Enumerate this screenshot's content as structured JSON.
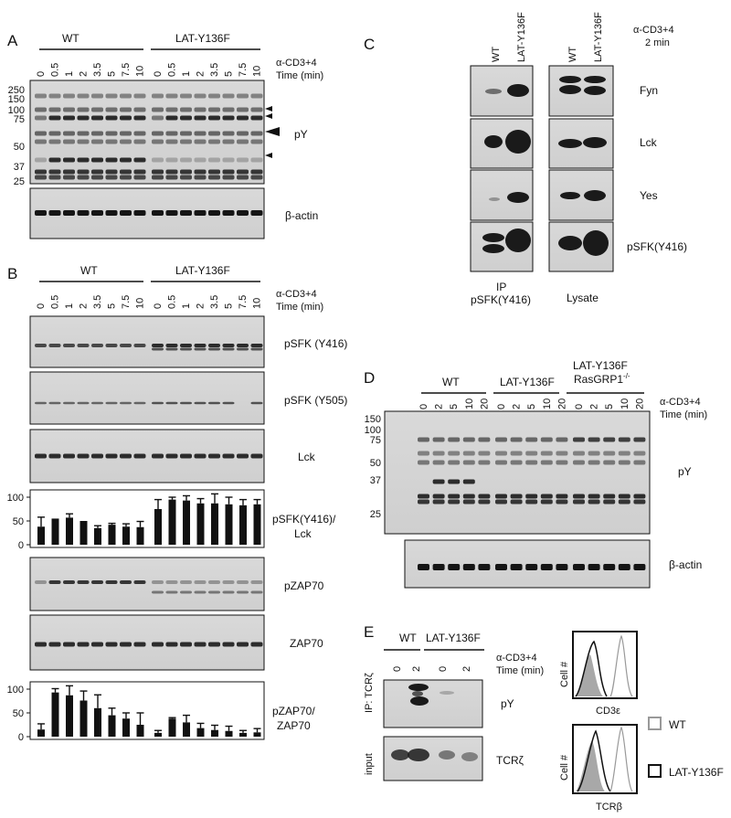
{
  "panelA": {
    "letter": "A",
    "groups": [
      "WT",
      "LAT-Y136F"
    ],
    "stim": "α-CD3+4",
    "time_label": "Time (min)",
    "times": [
      "0",
      "0.5",
      "1",
      "2",
      "3.5",
      "5",
      "7.5",
      "10",
      "0",
      "0.5",
      "1",
      "2",
      "3.5",
      "5",
      "7.5",
      "10"
    ],
    "mw": [
      "250",
      "150",
      "100",
      "75",
      "50",
      "37",
      "25"
    ],
    "blot_labels": [
      "pY",
      "β-actin"
    ]
  },
  "panelB": {
    "letter": "B",
    "groups": [
      "WT",
      "LAT-Y136F"
    ],
    "stim": "α-CD3+4",
    "time_label": "Time (min)",
    "times": [
      "0",
      "0.5",
      "1",
      "2",
      "3.5",
      "5",
      "7.5",
      "10",
      "0",
      "0.5",
      "1",
      "2",
      "3.5",
      "5",
      "7.5",
      "10"
    ],
    "blot_labels": [
      "pSFK (Y416)",
      "pSFK (Y505)",
      "Lck",
      "pZAP70",
      "ZAP70"
    ],
    "ratio1_label": [
      "pSFK(Y416)/",
      "Lck"
    ],
    "ratio2_label": [
      "pZAP70/",
      "ZAP70"
    ],
    "yticks": [
      "100",
      "50",
      "0"
    ]
  },
  "panelC": {
    "letter": "C",
    "lanes": [
      "WT",
      "LAT-Y136F"
    ],
    "stim": "α-CD3+4",
    "stim_time": "2 min",
    "blot_labels": [
      "Fyn",
      "Lck",
      "Yes",
      "pSFK(Y416)"
    ],
    "ip_label": "IP",
    "ip_sub": "pSFK(Y416)",
    "lysate_label": "Lysate"
  },
  "panelD": {
    "letter": "D",
    "groups": [
      "WT",
      "LAT-Y136F",
      "LAT-Y136F"
    ],
    "group3_line2": "RasGRP1",
    "group3_sup": "-/-",
    "stim": "α-CD3+4",
    "time_label": "Time (min)",
    "times": [
      "0",
      "2",
      "5",
      "10",
      "20",
      "0",
      "2",
      "5",
      "10",
      "20",
      "0",
      "2",
      "5",
      "10",
      "20"
    ],
    "mw": [
      "150",
      "100",
      "75",
      "50",
      "37",
      "25"
    ],
    "blot_labels": [
      "pY",
      "β-actin"
    ]
  },
  "panelE": {
    "letter": "E",
    "groups": [
      "WT",
      "LAT-Y136F"
    ],
    "times": [
      "0",
      "2",
      "0",
      "2"
    ],
    "stim": "α-CD3+4",
    "time_label": "Time (min)",
    "ip_label": "IP: TCRζ",
    "input_label": "input",
    "blot_labels": [
      "pY",
      "TCRζ"
    ],
    "flow_ylabel": "Cell #",
    "flow_xlabels": [
      "CD3ε",
      "TCRβ"
    ],
    "legend": [
      "WT",
      "LAT-Y136F"
    ]
  },
  "chart_data": [
    {
      "type": "bar",
      "title": "",
      "ylabel": "pSFK(Y416)/Lck",
      "categories": [
        "WT 0",
        "WT 0.5",
        "WT 1",
        "WT 2",
        "WT 3.5",
        "WT 5",
        "WT 7.5",
        "WT 10",
        "LAT-Y136F 0",
        "LAT-Y136F 0.5",
        "LAT-Y136F 1",
        "LAT-Y136F 2",
        "LAT-Y136F 3.5",
        "LAT-Y136F 5",
        "LAT-Y136F 7.5",
        "LAT-Y136F 10"
      ],
      "values": [
        38,
        55,
        57,
        50,
        35,
        42,
        38,
        37,
        75,
        95,
        93,
        87,
        87,
        85,
        83,
        85
      ],
      "errors": [
        20,
        0,
        8,
        0,
        5,
        3,
        6,
        12,
        20,
        5,
        10,
        10,
        20,
        15,
        12,
        10
      ],
      "ylim": [
        0,
        110
      ],
      "colors": {
        "bar": "#111111"
      }
    },
    {
      "type": "bar",
      "title": "",
      "ylabel": "pZAP70/ZAP70",
      "categories": [
        "WT 0",
        "WT 0.5",
        "WT 1",
        "WT 2",
        "WT 3.5",
        "WT 5",
        "WT 7.5",
        "WT 10",
        "LAT-Y136F 0",
        "LAT-Y136F 0.5",
        "LAT-Y136F 1",
        "LAT-Y136F 2",
        "LAT-Y136F 3.5",
        "LAT-Y136F 5",
        "LAT-Y136F 7.5",
        "LAT-Y136F 10"
      ],
      "values": [
        15,
        93,
        87,
        76,
        60,
        45,
        38,
        25,
        8,
        38,
        30,
        18,
        14,
        12,
        8,
        9
      ],
      "errors": [
        12,
        8,
        20,
        20,
        28,
        15,
        12,
        25,
        5,
        2,
        15,
        10,
        10,
        10,
        5,
        8
      ],
      "ylim": [
        0,
        110
      ],
      "colors": {
        "bar": "#111111"
      }
    }
  ]
}
